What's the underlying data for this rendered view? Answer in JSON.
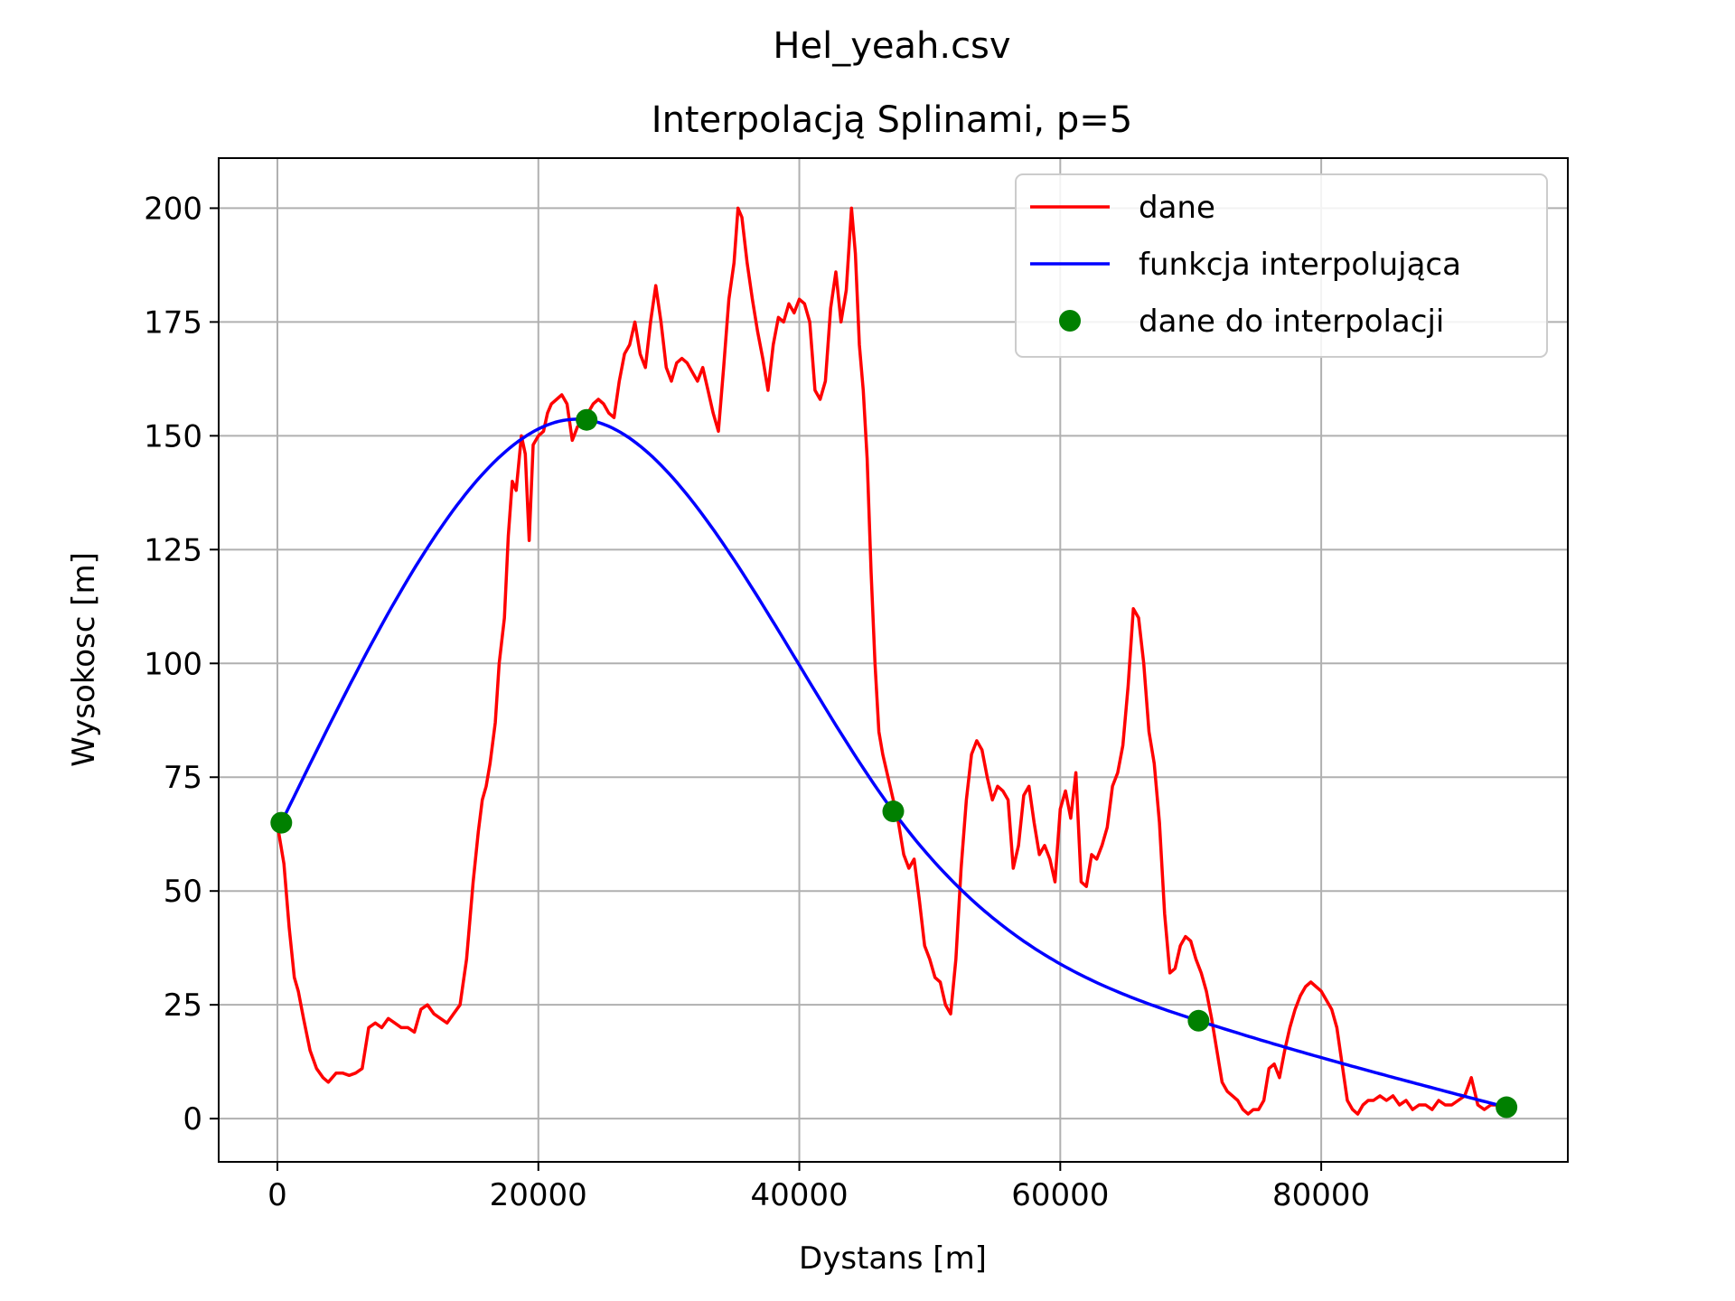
{
  "chart_data": {
    "type": "line",
    "suptitle": "Hel_yeah.csv",
    "title": "Interpolacją Splinami, p=5",
    "xlabel": "Dystans [m]",
    "ylabel": "Wysokosc [m]",
    "xlim": [
      -4500,
      98900
    ],
    "ylim": [
      -9.5,
      211
    ],
    "xticks": [
      0,
      20000,
      40000,
      60000,
      80000
    ],
    "yticks": [
      0,
      25,
      50,
      75,
      100,
      125,
      150,
      175,
      200
    ],
    "grid": true,
    "legend_position": "top-right",
    "series": [
      {
        "name": "dane",
        "style": "line",
        "color": "#ff0000",
        "x": [
          0,
          500,
          900,
          1300,
          1600,
          2000,
          2500,
          3000,
          3500,
          3900,
          4500,
          5000,
          5500,
          6000,
          6500,
          7000,
          7500,
          8000,
          8500,
          9000,
          9500,
          10000,
          10500,
          11000,
          11500,
          12000,
          12500,
          13000,
          13500,
          14000,
          14500,
          15000,
          15400,
          15700,
          16000,
          16300,
          16700,
          17000,
          17400,
          17700,
          18000,
          18300,
          18700,
          19000,
          19300,
          19600,
          20000,
          20400,
          20700,
          21000,
          21400,
          21800,
          22200,
          22600,
          23000,
          23400,
          23800,
          24200,
          24600,
          25000,
          25400,
          25800,
          26200,
          26600,
          27000,
          27400,
          27800,
          28200,
          28600,
          29000,
          29400,
          29800,
          30200,
          30600,
          31000,
          31400,
          31800,
          32200,
          32600,
          33000,
          33400,
          33800,
          34200,
          34600,
          35000,
          35300,
          35600,
          36000,
          36400,
          36800,
          37200,
          37600,
          38000,
          38400,
          38800,
          39200,
          39600,
          40000,
          40400,
          40800,
          41200,
          41600,
          42000,
          42400,
          42800,
          43200,
          43600,
          44000,
          44300,
          44600,
          44900,
          45200,
          45500,
          45800,
          46100,
          46400,
          46800,
          47200,
          47600,
          48000,
          48400,
          48800,
          49200,
          49600,
          50000,
          50400,
          50800,
          51200,
          51600,
          52000,
          52400,
          52800,
          53200,
          53600,
          54000,
          54400,
          54800,
          55200,
          55600,
          56000,
          56400,
          56800,
          57200,
          57600,
          58000,
          58400,
          58800,
          59200,
          59600,
          60000,
          60400,
          60800,
          61200,
          61600,
          62000,
          62400,
          62800,
          63200,
          63600,
          64000,
          64400,
          64800,
          65200,
          65600,
          66000,
          66400,
          66800,
          67200,
          67600,
          68000,
          68400,
          68800,
          69200,
          69600,
          70000,
          70400,
          70800,
          71200,
          71600,
          72000,
          72400,
          72800,
          73200,
          73600,
          74000,
          74400,
          74800,
          75200,
          75600,
          76000,
          76400,
          76800,
          77200,
          77600,
          78000,
          78400,
          78800,
          79200,
          79600,
          80000,
          80400,
          80800,
          81200,
          81600,
          82000,
          82400,
          82800,
          83200,
          83600,
          84000,
          84500,
          85000,
          85500,
          86000,
          86500,
          87000,
          87500,
          88000,
          88500,
          89000,
          89500,
          90000,
          90500,
          91000,
          91500,
          92000,
          92500,
          93000,
          93500,
          94000
        ],
        "y": [
          64.5,
          56,
          42,
          31,
          28,
          22,
          15,
          11,
          9,
          8,
          10,
          10,
          9.5,
          10,
          11,
          20,
          21,
          20,
          22,
          21,
          20,
          20,
          19,
          24,
          25,
          23,
          22,
          21,
          23,
          25,
          35,
          52,
          63,
          70,
          73,
          78,
          87,
          100,
          110,
          128,
          140,
          138,
          150,
          146,
          127,
          148,
          150,
          151,
          155,
          157,
          158,
          159,
          157,
          149,
          152,
          153,
          155,
          157,
          158,
          157,
          155,
          154,
          162,
          168,
          170,
          175,
          168,
          165,
          175,
          183,
          175,
          165,
          162,
          166,
          167,
          166,
          164,
          162,
          165,
          160,
          155,
          151,
          165,
          180,
          188,
          200,
          198,
          188,
          180,
          173,
          167,
          160,
          170,
          176,
          175,
          179,
          177,
          180,
          179,
          175,
          160,
          158,
          162,
          178,
          186,
          175,
          182,
          200,
          190,
          170,
          160,
          145,
          120,
          100,
          85,
          80,
          75,
          70,
          65,
          58,
          55,
          57,
          48,
          38,
          35,
          31,
          30,
          25,
          23,
          35,
          55,
          70,
          80,
          83,
          81,
          75,
          70,
          73,
          72,
          70,
          55,
          60,
          71,
          73,
          65,
          58,
          60,
          57,
          52,
          68,
          72,
          66,
          76,
          52,
          51,
          58,
          57,
          60,
          64,
          73,
          76,
          82,
          95,
          112,
          110,
          100,
          85,
          78,
          65,
          45,
          32,
          33,
          38,
          40,
          39,
          35,
          32,
          28,
          22,
          15,
          8,
          6,
          5,
          4,
          2,
          1,
          2,
          2,
          4,
          11,
          12,
          9,
          15,
          20,
          24,
          27,
          29,
          30,
          29,
          28,
          26,
          24,
          20,
          12,
          4,
          2,
          1,
          3,
          4,
          4,
          5,
          4,
          5,
          3,
          4,
          2,
          3,
          3,
          2,
          4,
          3,
          3,
          4,
          5,
          9,
          3,
          2,
          3,
          3,
          3
        ]
      },
      {
        "name": "funkcja interpolująca",
        "style": "line",
        "color": "#0000ff",
        "x": [
          300,
          23700,
          47200,
          70600,
          94200
        ],
        "y": [
          65,
          153.5,
          67.5,
          21.5,
          2.5
        ]
      },
      {
        "name": "dane do interpolacji",
        "style": "markers",
        "color": "#008000",
        "x": [
          300,
          23700,
          47200,
          70600,
          94200
        ],
        "y": [
          65,
          153.5,
          67.5,
          21.5,
          2.5
        ]
      }
    ]
  }
}
